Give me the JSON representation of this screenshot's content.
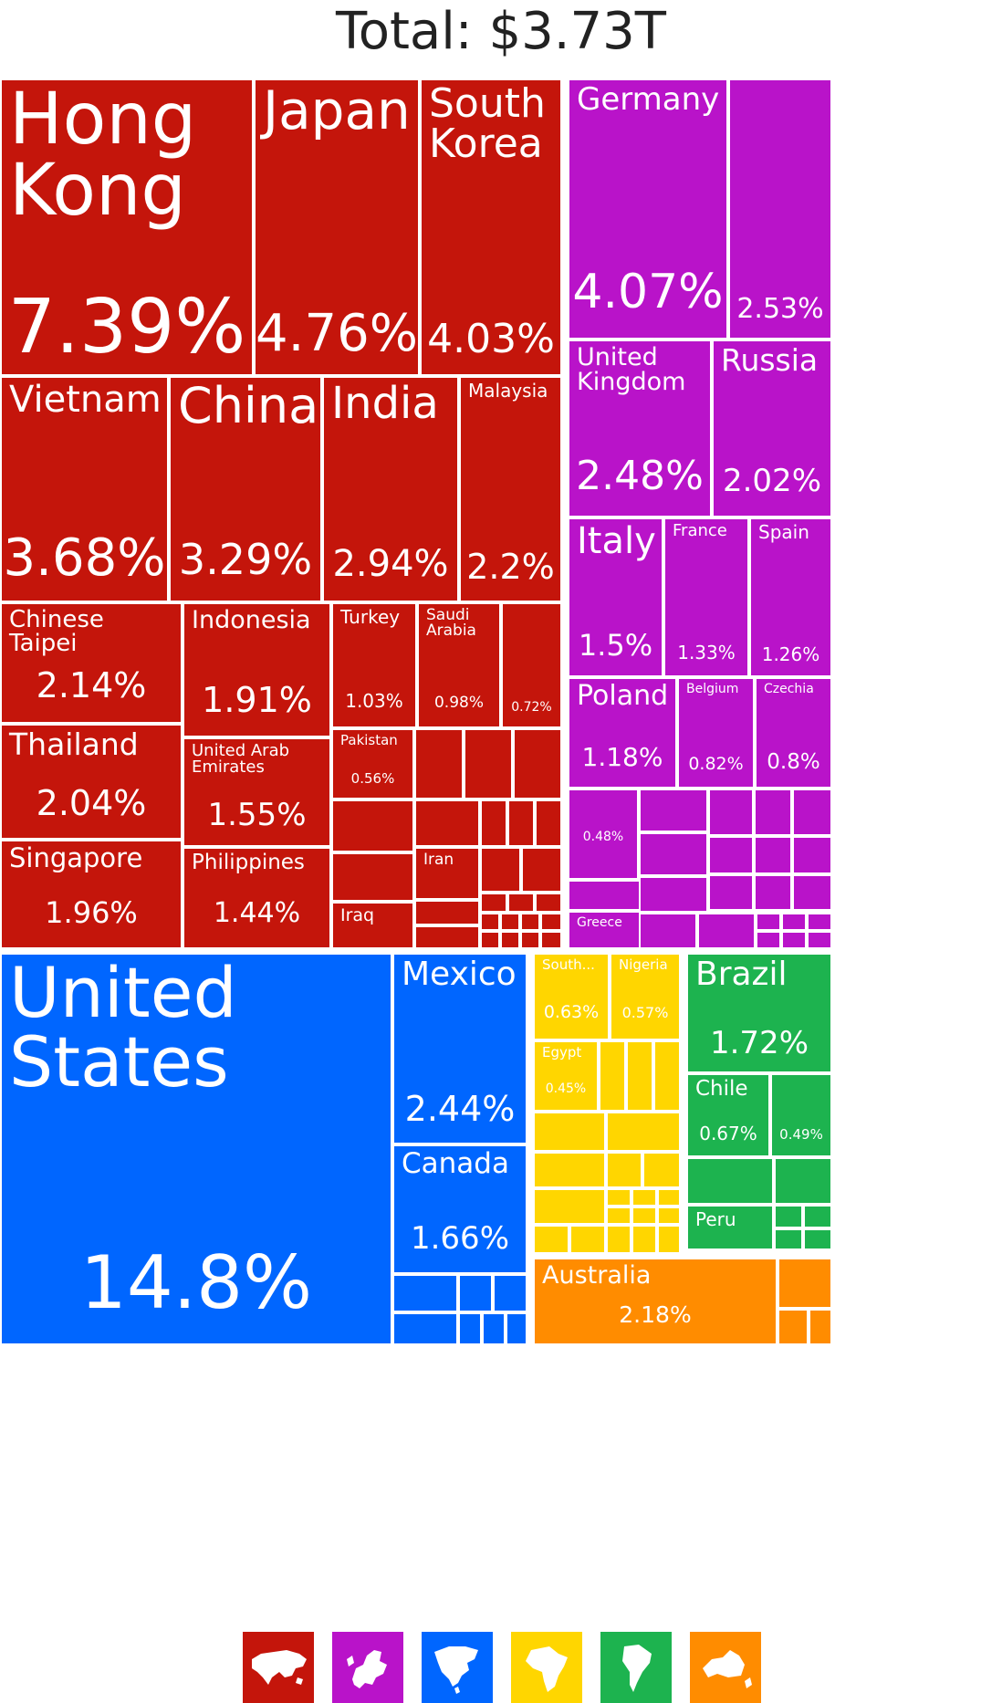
{
  "title": "Total: $3.73T",
  "colors": {
    "asia": "#c4150b",
    "europe": "#b913c9",
    "north_america": "#0066ff",
    "africa": "#ffd600",
    "south_america": "#1db34f",
    "oceania": "#ff8c00",
    "bg": "#ffffff"
  },
  "chart_data": {
    "type": "treemap",
    "title": "Total: $3.73T",
    "groups": [
      {
        "name": "asia",
        "color": "#c4150b",
        "items": [
          {
            "name": "Hong Kong",
            "value": 7.39,
            "label": "7.39%"
          },
          {
            "name": "Japan",
            "value": 4.76,
            "label": "4.76%"
          },
          {
            "name": "South Korea",
            "value": 4.03,
            "label": "4.03%"
          },
          {
            "name": "Vietnam",
            "value": 3.68,
            "label": "3.68%"
          },
          {
            "name": "China",
            "value": 3.29,
            "label": "3.29%"
          },
          {
            "name": "India",
            "value": 2.94,
            "label": "2.94%"
          },
          {
            "name": "Malaysia",
            "value": 2.2,
            "label": "2.2%"
          },
          {
            "name": "Chinese Taipei",
            "value": 2.14,
            "label": "2.14%"
          },
          {
            "name": "Indonesia",
            "value": 1.91,
            "label": "1.91%"
          },
          {
            "name": "Turkey",
            "value": 1.03,
            "label": "1.03%"
          },
          {
            "name": "Saudi Arabia",
            "value": 0.98,
            "label": "0.98%"
          },
          {
            "name": "",
            "value": 0.72,
            "label": "0.72%"
          },
          {
            "name": "Thailand",
            "value": 2.04,
            "label": "2.04%"
          },
          {
            "name": "United Arab Emirates",
            "value": 1.55,
            "label": "1.55%"
          },
          {
            "name": "Pakistan",
            "value": 0.56,
            "label": "0.56%"
          },
          {
            "name": "Singapore",
            "value": 1.96,
            "label": "1.96%"
          },
          {
            "name": "Philippines",
            "value": 1.44,
            "label": "1.44%"
          },
          {
            "name": "Iran",
            "value": null,
            "label": ""
          },
          {
            "name": "Iraq",
            "value": null,
            "label": ""
          }
        ]
      },
      {
        "name": "europe",
        "color": "#b913c9",
        "items": [
          {
            "name": "Germany",
            "value": 4.07,
            "label": "4.07%"
          },
          {
            "name": "",
            "value": 2.53,
            "label": "2.53%"
          },
          {
            "name": "United Kingdom",
            "value": 2.48,
            "label": "2.48%"
          },
          {
            "name": "Russia",
            "value": 2.02,
            "label": "2.02%"
          },
          {
            "name": "Italy",
            "value": 1.5,
            "label": "1.5%"
          },
          {
            "name": "France",
            "value": 1.33,
            "label": "1.33%"
          },
          {
            "name": "Spain",
            "value": 1.26,
            "label": "1.26%"
          },
          {
            "name": "Poland",
            "value": 1.18,
            "label": "1.18%"
          },
          {
            "name": "Belgium",
            "value": 0.82,
            "label": "0.82%"
          },
          {
            "name": "Czechia",
            "value": 0.8,
            "label": "0.8%"
          },
          {
            "name": "",
            "value": 0.48,
            "label": "0.48%"
          },
          {
            "name": "Greece",
            "value": null,
            "label": ""
          }
        ]
      },
      {
        "name": "north_america",
        "color": "#0066ff",
        "items": [
          {
            "name": "United States",
            "value": 14.8,
            "label": "14.8%"
          },
          {
            "name": "Mexico",
            "value": 2.44,
            "label": "2.44%"
          },
          {
            "name": "Canada",
            "value": 1.66,
            "label": "1.66%"
          }
        ]
      },
      {
        "name": "africa",
        "color": "#ffd600",
        "items": [
          {
            "name": "South...",
            "value": 0.63,
            "label": "0.63%"
          },
          {
            "name": "Nigeria",
            "value": 0.57,
            "label": "0.57%"
          },
          {
            "name": "Egypt",
            "value": 0.45,
            "label": "0.45%"
          }
        ]
      },
      {
        "name": "south_america",
        "color": "#1db34f",
        "items": [
          {
            "name": "Brazil",
            "value": 1.72,
            "label": "1.72%"
          },
          {
            "name": "Chile",
            "value": 0.67,
            "label": "0.67%"
          },
          {
            "name": "",
            "value": 0.49,
            "label": "0.49%"
          },
          {
            "name": "Peru",
            "value": null,
            "label": ""
          }
        ]
      },
      {
        "name": "oceania",
        "color": "#ff8c00",
        "items": [
          {
            "name": "Australia",
            "value": 2.18,
            "label": "2.18%"
          }
        ]
      }
    ]
  },
  "legend": [
    {
      "name": "asia-map-icon",
      "color": "#c4150b"
    },
    {
      "name": "europe-map-icon",
      "color": "#b913c9"
    },
    {
      "name": "north-america-map-icon",
      "color": "#0066ff"
    },
    {
      "name": "africa-map-icon",
      "color": "#ffd600"
    },
    {
      "name": "south-america-map-icon",
      "color": "#1db34f"
    },
    {
      "name": "oceania-map-icon",
      "color": "#ff8c00"
    }
  ]
}
